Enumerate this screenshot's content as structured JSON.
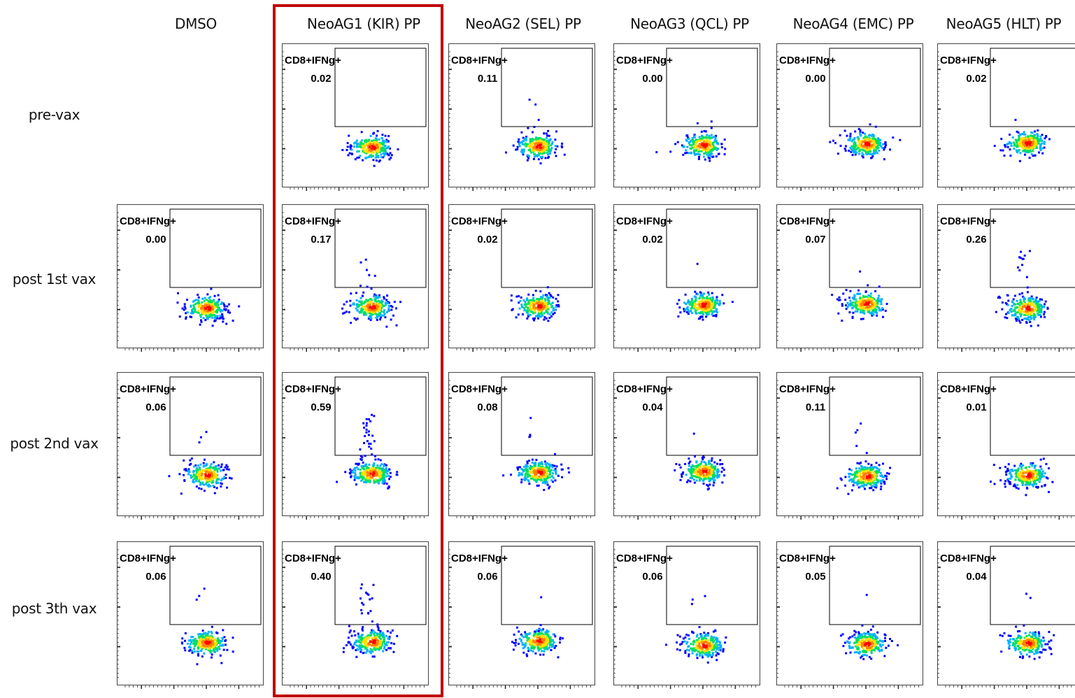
{
  "chart_data": {
    "type": "scatter",
    "columns": [
      "DMSO",
      "NeoAG1 (KIR) PP",
      "NeoAG2 (SEL) PP",
      "NeoAG3 (QCL) PP",
      "NeoAG4 (EMC) PP",
      "NeoAG5 (HLT) PP"
    ],
    "rows": [
      "pre-vax",
      "post 1st vax",
      "post 2nd vax",
      "post 3th vax"
    ],
    "gate_label": "CD8+IFNg+",
    "highlighted_column": "NeoAG1 (KIR) PP",
    "highlight_color": "#c00000",
    "gate_values": [
      [
        null,
        "0.02",
        "0.11",
        "0.00",
        "0.00",
        "0.02"
      ],
      [
        "0.00",
        "0.17",
        "0.02",
        "0.02",
        "0.07",
        "0.26"
      ],
      [
        "0.06",
        "0.59",
        "0.08",
        "0.04",
        "0.11",
        "0.01"
      ],
      [
        "0.06",
        "0.40",
        "0.06",
        "0.06",
        "0.05",
        "0.04"
      ]
    ],
    "density_colors": [
      "#0000ff",
      "#00b0ff",
      "#00e060",
      "#ffe000",
      "#ff8000",
      "#ff0000"
    ]
  }
}
